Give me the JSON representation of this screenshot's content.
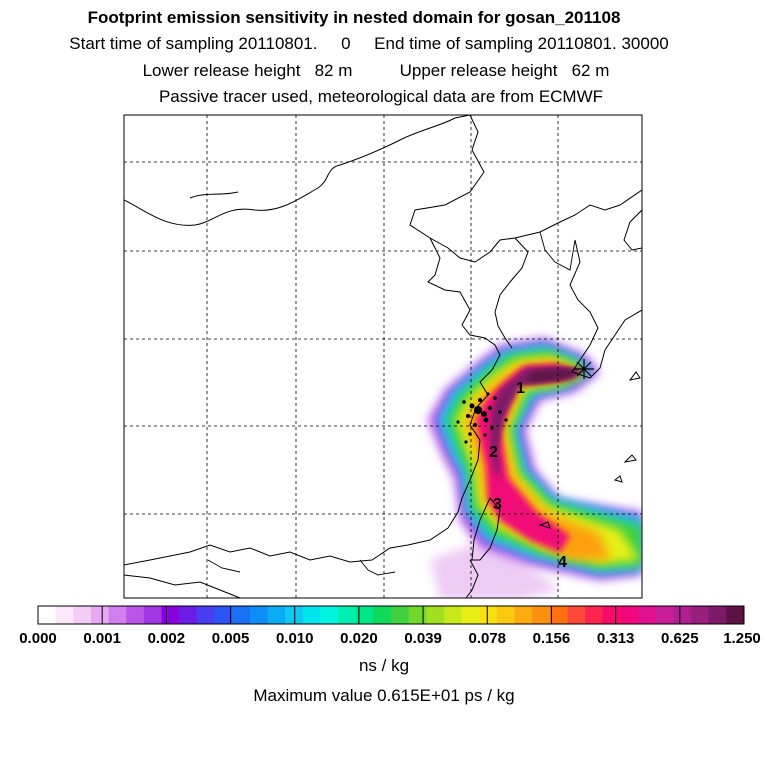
{
  "header": {
    "title": "Footprint emission sensitivity in nested domain for gosan_201108",
    "sampling_line": "Start time of sampling 20110801.     0     End time of sampling 20110801. 30000",
    "release_line": "Lower release height   82 m          Upper release height   62 m",
    "tracer_line": "Passive tracer used, meteorological data are from ECMWF"
  },
  "map": {
    "markers": [
      "1",
      "2",
      "3",
      "4"
    ],
    "release_site_icon": "cross-star-icon"
  },
  "colorbar": {
    "tick_labels": [
      "0.000",
      "0.001",
      "0.002",
      "0.005",
      "0.010",
      "0.020",
      "0.039",
      "0.078",
      "0.156",
      "0.313",
      "0.625",
      "1.250"
    ],
    "colors": [
      "#ffffff",
      "#fbe8fb",
      "#f3cdf6",
      "#e6a9f2",
      "#cf7fee",
      "#bb55ea",
      "#a236e8",
      "#8a00e0",
      "#6b1de6",
      "#4a3cf0",
      "#2b55f4",
      "#1a70f5",
      "#0d8df7",
      "#0aabf5",
      "#10c8f2",
      "#00e5f0",
      "#00f5e0",
      "#00efb0",
      "#00e58a",
      "#10d85a",
      "#40d040",
      "#70d82a",
      "#a0e020",
      "#c8e81a",
      "#e8ee18",
      "#f8e010",
      "#fcc810",
      "#fcac10",
      "#fc9010",
      "#fc7010",
      "#fc4838",
      "#fc2450",
      "#f80a68",
      "#f0087c",
      "#e01090",
      "#c81e98",
      "#b0208e",
      "#96207c",
      "#7c1a68",
      "#5c1244"
    ],
    "unit": "ns / kg"
  },
  "footer": {
    "max_value": "Maximum value  0.615E+01 ps / kg"
  }
}
